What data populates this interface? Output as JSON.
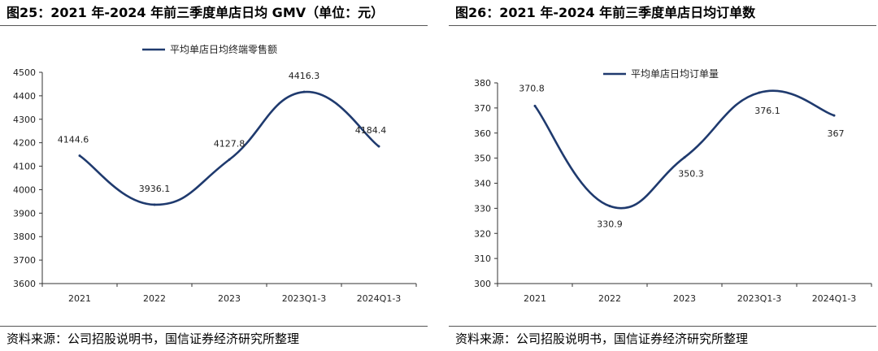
{
  "chart_data": [
    {
      "type": "line",
      "title": "图25：2021 年-2024 年前三季度单店日均 GMV（单位：元）",
      "categories": [
        "2021",
        "2022",
        "2023",
        "2023Q1-3",
        "2024Q1-3"
      ],
      "series": [
        {
          "name": "平均单店日均终端零售额",
          "values": [
            4144.6,
            3936.1,
            4127.8,
            4416.3,
            4184.4
          ]
        }
      ],
      "data_labels": [
        "4144.6",
        "3936.1",
        "4127.8",
        "4416.3",
        "4184.4"
      ],
      "ylim": [
        3600,
        4500
      ],
      "yticks": [
        "3600",
        "3700",
        "3800",
        "3900",
        "4000",
        "4100",
        "4200",
        "4300",
        "4400",
        "4500"
      ],
      "legend": "top-center",
      "grid": false,
      "smooth": true,
      "line_color": "#1f3a6e",
      "source": "资料来源：公司招股说明书，国信证券经济研究所整理"
    },
    {
      "type": "line",
      "title": "图26：2021 年-2024 年前三季度单店日均订单数",
      "categories": [
        "2021",
        "2022",
        "2023",
        "2023Q1-3",
        "2024Q1-3"
      ],
      "series": [
        {
          "name": "平均单店日均订单量",
          "values": [
            370.8,
            330.9,
            350.3,
            376.1,
            367
          ]
        }
      ],
      "data_labels": [
        "370.8",
        "330.9",
        "350.3",
        "376.1",
        "367"
      ],
      "ylim": [
        300,
        380
      ],
      "yticks": [
        "300",
        "310",
        "320",
        "330",
        "340",
        "350",
        "360",
        "370",
        "380"
      ],
      "legend": "top-center",
      "grid": false,
      "smooth": true,
      "line_color": "#1f3a6e",
      "source": "资料来源：公司招股说明书，国信证券经济研究所整理"
    }
  ]
}
